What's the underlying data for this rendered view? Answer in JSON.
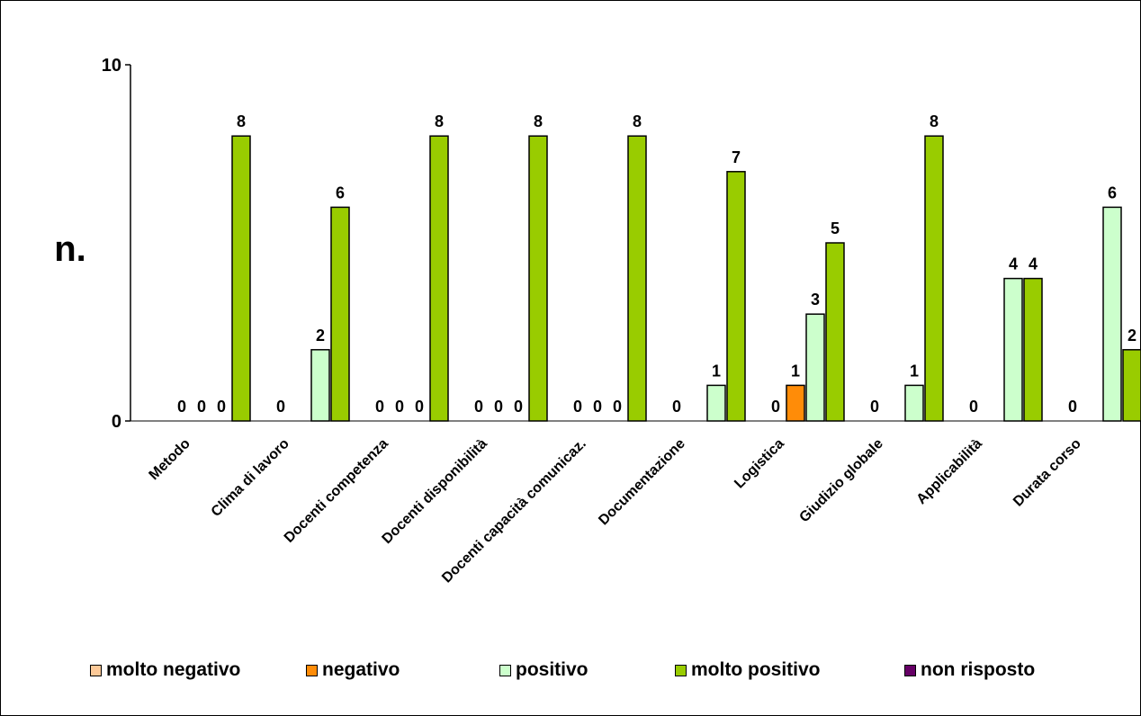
{
  "chart_data": {
    "type": "bar",
    "title": "",
    "ylabel": "n.",
    "xlabel": "",
    "ylim": [
      0,
      10
    ],
    "yticks": [
      "0",
      "10"
    ],
    "grid": false,
    "legend_position": "bottom",
    "categories": [
      "Metodo",
      "Clima di lavoro",
      "Docenti competenza",
      "Docenti disponibilità",
      "Docenti capacità comunicaz.",
      "Documentazione",
      "Logistica",
      "Giudizio globale",
      "Applicabilità",
      "Durata corso"
    ],
    "series": [
      {
        "name": "molto negativo",
        "color": "#fcc998",
        "values": [
          0,
          0,
          0,
          0,
          0,
          0,
          0,
          0,
          0,
          0
        ],
        "labels": [
          "0",
          "0",
          "0",
          "0",
          "0",
          "0",
          "0",
          "0",
          "0",
          "0"
        ]
      },
      {
        "name": "negativo",
        "color": "#ff8c08",
        "values": [
          0,
          0,
          0,
          0,
          0,
          0,
          1,
          0,
          0,
          0
        ],
        "labels": [
          "0",
          "",
          "0",
          "0",
          "0",
          "",
          "1",
          "",
          "",
          ""
        ]
      },
      {
        "name": "positivo",
        "color": "#ccffcc",
        "values": [
          0,
          2,
          0,
          0,
          0,
          1,
          3,
          1,
          4,
          6
        ],
        "labels": [
          "0",
          "2",
          "0",
          "0",
          "0",
          "1",
          "3",
          "1",
          "4",
          "6"
        ]
      },
      {
        "name": "molto positivo",
        "color": "#99cc00",
        "values": [
          8,
          6,
          8,
          8,
          8,
          7,
          5,
          8,
          4,
          2
        ],
        "labels": [
          "8",
          "6",
          "8",
          "8",
          "8",
          "7",
          "5",
          "8",
          "4",
          "2"
        ]
      },
      {
        "name": "non risposto",
        "color": "#660066",
        "values": [
          null,
          null,
          null,
          null,
          null,
          null,
          null,
          null,
          null,
          null
        ],
        "labels": [
          "",
          "",
          "",
          "",
          "",
          "",
          "",
          "",
          "",
          ""
        ]
      }
    ]
  }
}
